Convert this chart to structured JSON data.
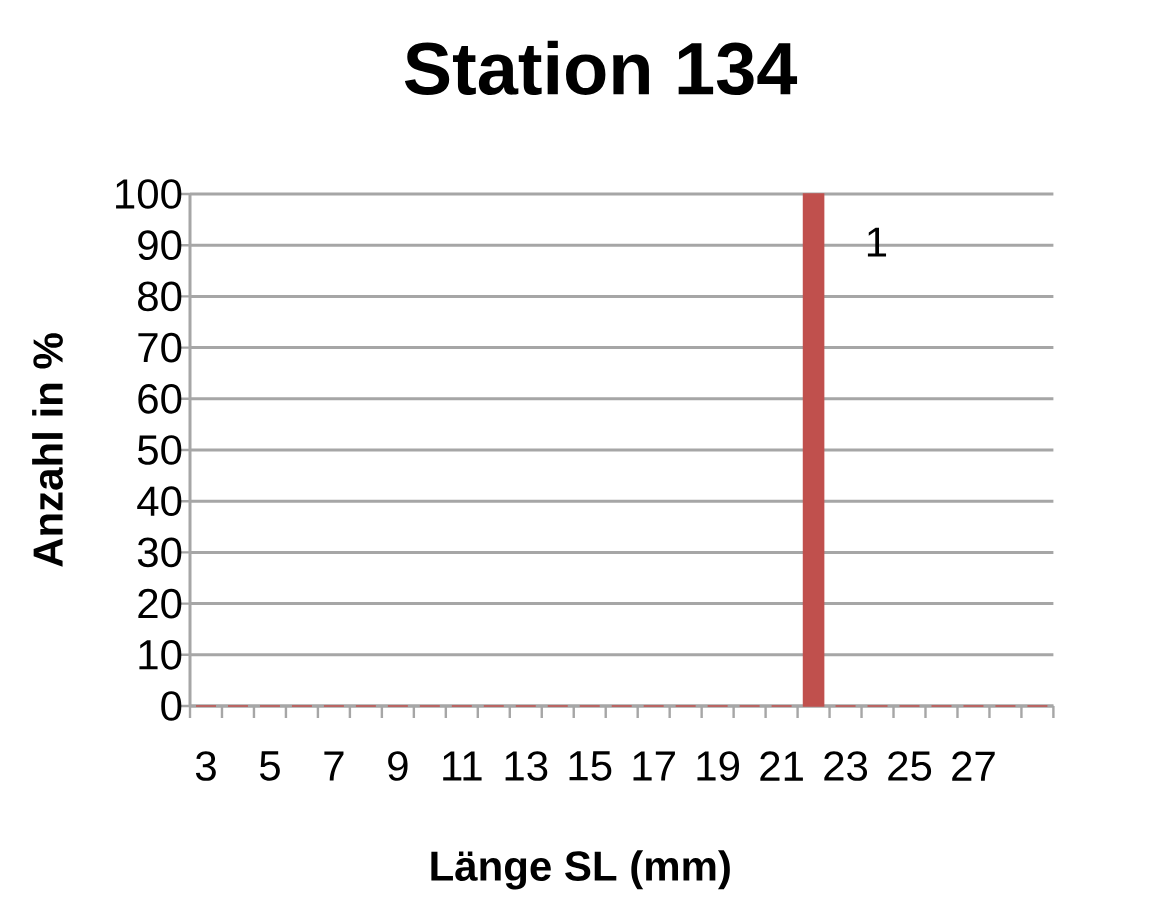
{
  "chart_data": {
    "type": "bar",
    "title": "Station 134",
    "xlabel": "Länge SL (mm)",
    "ylabel": "Anzahl in %",
    "categories": [
      "3",
      null,
      "5",
      null,
      "7",
      null,
      "9",
      null,
      "11",
      null,
      "13",
      null,
      "15",
      null,
      "17",
      null,
      "19",
      null,
      "21",
      null,
      "23",
      null,
      "25",
      null,
      "27",
      null,
      null
    ],
    "values": [
      0,
      0,
      0,
      0,
      0,
      0,
      0,
      0,
      0,
      0,
      0,
      0,
      0,
      0,
      0,
      0,
      0,
      0,
      0,
      100,
      0,
      0,
      0,
      0,
      0,
      0,
      0
    ],
    "color": "#c0504d",
    "ylim": [
      0,
      100
    ],
    "yticks": [
      0,
      10,
      20,
      30,
      40,
      50,
      60,
      70,
      80,
      90,
      100
    ],
    "grid": "y",
    "annotations": [
      "1"
    ]
  }
}
